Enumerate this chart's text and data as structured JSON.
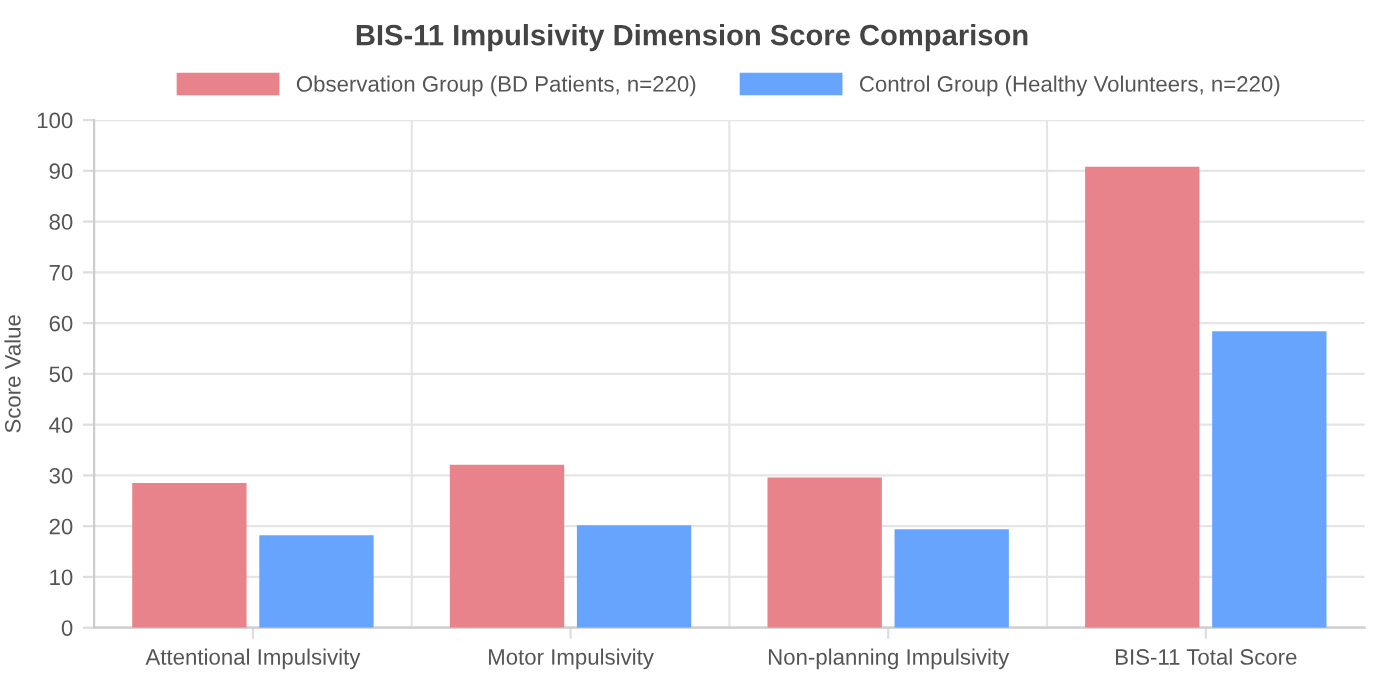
{
  "chart_data": {
    "type": "bar",
    "title": "BIS-11 Impulsivity Dimension Score Comparison",
    "ylabel": "Score Value",
    "categories": [
      "Attentional Impulsivity",
      "Motor Impulsivity",
      "Non-planning Impulsivity",
      "BIS-11 Total Score"
    ],
    "series": [
      {
        "name": "Observation Group (BD Patients, n=220)",
        "color": "#e8828b",
        "values": [
          28.5,
          32.1,
          29.6,
          90.8
        ]
      },
      {
        "name": "Control Group (Healthy Volunteers, n=220)",
        "color": "#67a4fd",
        "values": [
          18.2,
          20.2,
          19.4,
          58.4
        ]
      }
    ],
    "ylim": [
      0,
      100
    ],
    "yticks": [
      0,
      10,
      20,
      30,
      40,
      50,
      60,
      70,
      80,
      90,
      100
    ],
    "grid": true,
    "legend": "top"
  }
}
